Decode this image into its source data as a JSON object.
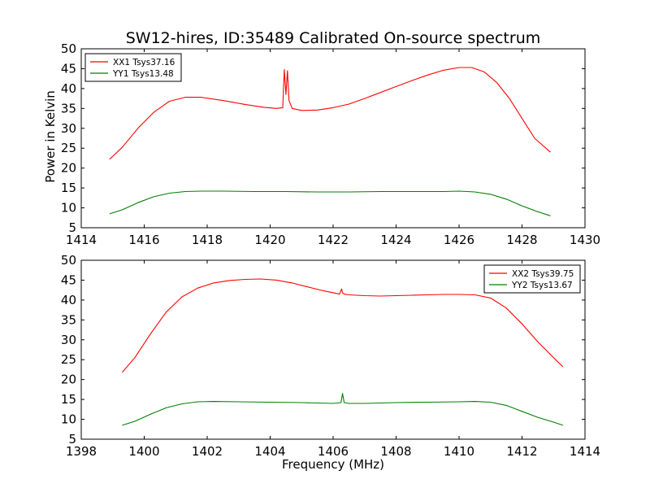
{
  "figure": {
    "title": "SW12-hires, ID:35489 Calibrated On-source spectrum",
    "ylabel": "Power in Kelvin",
    "xlabel": "Frequency (MHz)"
  },
  "chart_data": [
    {
      "type": "line",
      "title": "SW12-hires, ID:35489 Calibrated On-source spectrum",
      "xlabel": "",
      "ylabel": "Power in Kelvin",
      "xlim": [
        1414,
        1430
      ],
      "ylim": [
        5,
        50
      ],
      "xticks": [
        "1414",
        "1416",
        "1418",
        "1420",
        "1422",
        "1424",
        "1426",
        "1428",
        "1430"
      ],
      "yticks": [
        "5",
        "10",
        "15",
        "20",
        "25",
        "30",
        "35",
        "40",
        "45",
        "50"
      ],
      "legend_position": "top-left",
      "series": [
        {
          "name": "XX1 Tsys37.16",
          "color": "#ff0000",
          "x": [
            1414.9,
            1415.3,
            1415.8,
            1416.3,
            1416.8,
            1417.3,
            1417.8,
            1418.5,
            1419.2,
            1419.8,
            1420.2,
            1420.4,
            1420.45,
            1420.5,
            1420.55,
            1420.6,
            1420.7,
            1421.0,
            1421.5,
            1422.0,
            1422.5,
            1423.0,
            1423.5,
            1424.0,
            1424.5,
            1425.0,
            1425.5,
            1426.0,
            1426.4,
            1426.8,
            1427.2,
            1427.6,
            1428.0,
            1428.4,
            1428.9
          ],
          "y": [
            22.2,
            25.2,
            30.0,
            34.0,
            36.8,
            37.8,
            37.8,
            37.0,
            36.0,
            35.3,
            35.0,
            35.2,
            44.8,
            38.5,
            44.5,
            37.0,
            35.0,
            34.5,
            34.6,
            35.2,
            36.1,
            37.5,
            39.0,
            40.5,
            42.0,
            43.4,
            44.6,
            45.3,
            45.3,
            44.2,
            41.5,
            37.5,
            32.5,
            27.5,
            24.0
          ]
        },
        {
          "name": "YY1 Tsys13.48",
          "color": "#007f00",
          "x": [
            1414.9,
            1415.3,
            1415.8,
            1416.3,
            1416.8,
            1417.3,
            1417.8,
            1418.5,
            1419.5,
            1420.5,
            1421.5,
            1422.5,
            1423.5,
            1424.5,
            1425.5,
            1426.0,
            1426.5,
            1427.0,
            1427.5,
            1428.0,
            1428.5,
            1428.9
          ],
          "y": [
            8.5,
            9.5,
            11.3,
            12.8,
            13.7,
            14.1,
            14.2,
            14.2,
            14.1,
            14.1,
            14.0,
            14.0,
            14.1,
            14.1,
            14.1,
            14.2,
            14.0,
            13.4,
            12.2,
            10.5,
            9.0,
            8.0
          ]
        }
      ]
    },
    {
      "type": "line",
      "title": "",
      "xlabel": "Frequency (MHz)",
      "ylabel": "",
      "xlim": [
        1398,
        1414
      ],
      "ylim": [
        5,
        50
      ],
      "xticks": [
        "1398",
        "1400",
        "1402",
        "1404",
        "1406",
        "1408",
        "1410",
        "1412",
        "1414"
      ],
      "yticks": [
        "5",
        "10",
        "15",
        "20",
        "25",
        "30",
        "35",
        "40",
        "45",
        "50"
      ],
      "legend_position": "top-right",
      "series": [
        {
          "name": "XX2 Tsys39.75",
          "color": "#ff0000",
          "x": [
            1399.3,
            1399.7,
            1400.2,
            1400.7,
            1401.2,
            1401.7,
            1402.2,
            1402.7,
            1403.2,
            1403.7,
            1404.2,
            1404.7,
            1405.2,
            1405.7,
            1406.2,
            1406.27,
            1406.3,
            1406.35,
            1406.5,
            1407.0,
            1407.5,
            1408.0,
            1408.5,
            1409.0,
            1409.5,
            1410.0,
            1410.5,
            1411.0,
            1411.5,
            1412.0,
            1412.5,
            1413.0,
            1413.3
          ],
          "y": [
            21.8,
            25.5,
            31.5,
            37.0,
            40.8,
            43.0,
            44.3,
            44.9,
            45.2,
            45.3,
            45.0,
            44.3,
            43.3,
            42.3,
            41.5,
            42.8,
            41.8,
            41.5,
            41.3,
            41.1,
            41.0,
            41.1,
            41.2,
            41.3,
            41.4,
            41.4,
            41.3,
            40.5,
            38.0,
            34.0,
            29.5,
            25.5,
            23.2
          ]
        },
        {
          "name": "YY2 Tsys13.67",
          "color": "#007f00",
          "x": [
            1399.3,
            1399.7,
            1400.2,
            1400.7,
            1401.2,
            1401.7,
            1402.2,
            1403.0,
            1404.0,
            1405.0,
            1406.0,
            1406.25,
            1406.3,
            1406.35,
            1406.5,
            1407.0,
            1408.0,
            1409.0,
            1410.0,
            1410.5,
            1411.0,
            1411.5,
            1412.0,
            1412.5,
            1413.0,
            1413.3
          ],
          "y": [
            8.5,
            9.5,
            11.3,
            12.9,
            13.9,
            14.4,
            14.5,
            14.4,
            14.3,
            14.2,
            14.0,
            14.2,
            16.5,
            14.2,
            14.0,
            14.0,
            14.2,
            14.3,
            14.4,
            14.5,
            14.3,
            13.5,
            12.0,
            10.5,
            9.3,
            8.5
          ]
        }
      ]
    }
  ]
}
